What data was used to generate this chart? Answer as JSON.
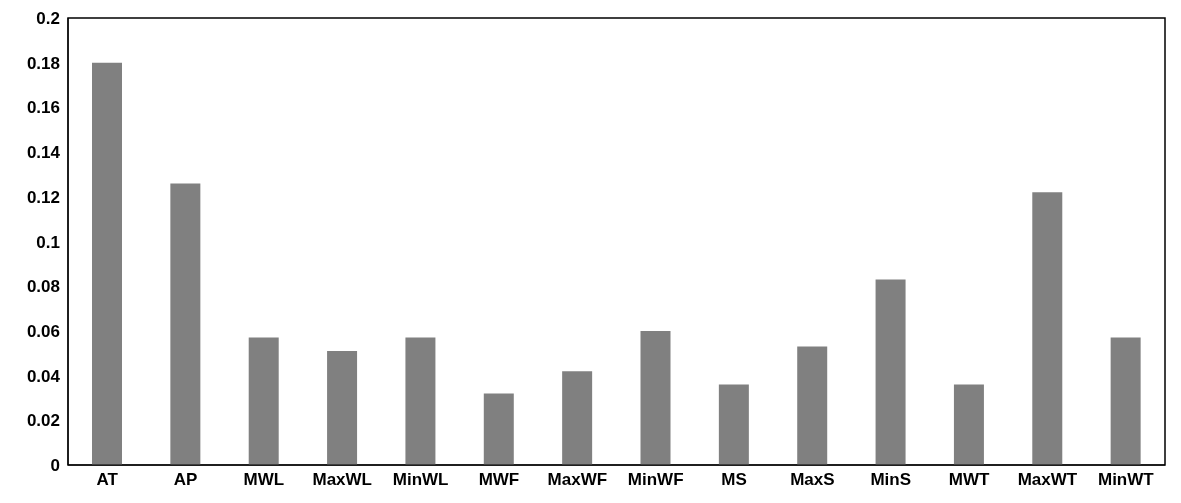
{
  "chart_data": {
    "type": "bar",
    "categories": [
      "AT",
      "AP",
      "MWL",
      "MaxWL",
      "MinWL",
      "MWF",
      "MaxWF",
      "MinWF",
      "MS",
      "MaxS",
      "MinS",
      "MWT",
      "MaxWT",
      "MinWT"
    ],
    "values": [
      0.18,
      0.126,
      0.057,
      0.051,
      0.057,
      0.032,
      0.042,
      0.06,
      0.036,
      0.053,
      0.083,
      0.036,
      0.122,
      0.057
    ],
    "color": "#808080",
    "ylim": [
      0,
      0.2
    ],
    "yticks": [
      0,
      0.02,
      0.04,
      0.06,
      0.08,
      0.1,
      0.12,
      0.14,
      0.16,
      0.18,
      0.2
    ],
    "grid": false,
    "legend": false
  }
}
